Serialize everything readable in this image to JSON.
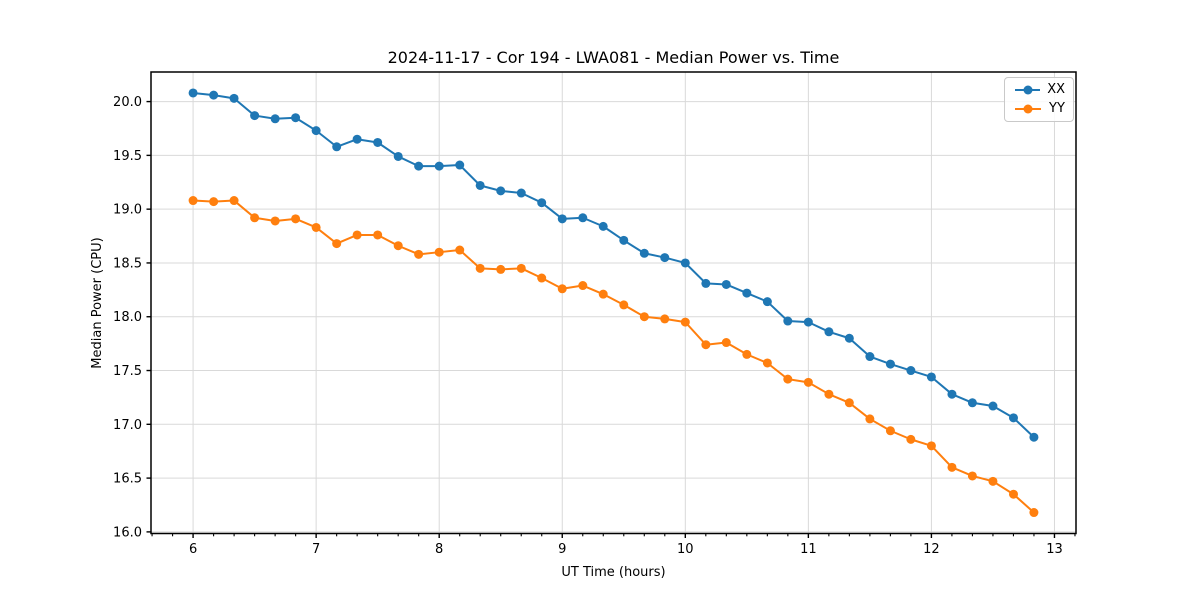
{
  "chart_data": {
    "type": "line",
    "title": "2024-11-17 - Cor 194 - LWA081 - Median Power vs. Time",
    "xlabel": "UT Time (hours)",
    "ylabel": "Median Power (CPU)",
    "xlim": [
      5.658,
      13.175
    ],
    "ylim": [
      15.985,
      20.275
    ],
    "xticks": [
      6,
      7,
      8,
      9,
      10,
      11,
      12,
      13
    ],
    "yticks": [
      16.0,
      16.5,
      17.0,
      17.5,
      18.0,
      18.5,
      19.0,
      19.5,
      20.0
    ],
    "x_minor_step_sixths": 1,
    "grid": true,
    "legend_position": "upper right",
    "x": [
      6.0,
      6.167,
      6.333,
      6.5,
      6.667,
      6.833,
      7.0,
      7.167,
      7.333,
      7.5,
      7.667,
      7.833,
      8.0,
      8.167,
      8.333,
      8.5,
      8.667,
      8.833,
      9.0,
      9.167,
      9.333,
      9.5,
      9.667,
      9.833,
      10.0,
      10.167,
      10.333,
      10.5,
      10.667,
      10.833,
      11.0,
      11.167,
      11.333,
      11.5,
      11.667,
      11.833,
      12.0,
      12.167,
      12.333,
      12.5,
      12.667,
      12.833
    ],
    "series": [
      {
        "name": "XX",
        "color": "#1f77b4",
        "values": [
          20.08,
          20.06,
          20.03,
          19.87,
          19.84,
          19.85,
          19.73,
          19.58,
          19.65,
          19.62,
          19.49,
          19.4,
          19.4,
          19.41,
          19.22,
          19.17,
          19.15,
          19.06,
          18.91,
          18.92,
          18.84,
          18.71,
          18.59,
          18.55,
          18.5,
          18.31,
          18.3,
          18.22,
          18.14,
          17.96,
          17.95,
          17.86,
          17.8,
          17.63,
          17.56,
          17.5,
          17.44,
          17.28,
          17.2,
          17.17,
          17.06,
          16.88
        ]
      },
      {
        "name": "YY",
        "color": "#ff7f0e",
        "values": [
          19.08,
          19.07,
          19.08,
          18.92,
          18.89,
          18.91,
          18.83,
          18.68,
          18.76,
          18.76,
          18.66,
          18.58,
          18.6,
          18.62,
          18.45,
          18.44,
          18.45,
          18.36,
          18.26,
          18.29,
          18.21,
          18.11,
          18.0,
          17.98,
          17.95,
          17.74,
          17.76,
          17.65,
          17.57,
          17.42,
          17.39,
          17.28,
          17.2,
          17.05,
          16.94,
          16.86,
          16.8,
          16.6,
          16.52,
          16.47,
          16.35,
          16.18
        ]
      }
    ]
  }
}
